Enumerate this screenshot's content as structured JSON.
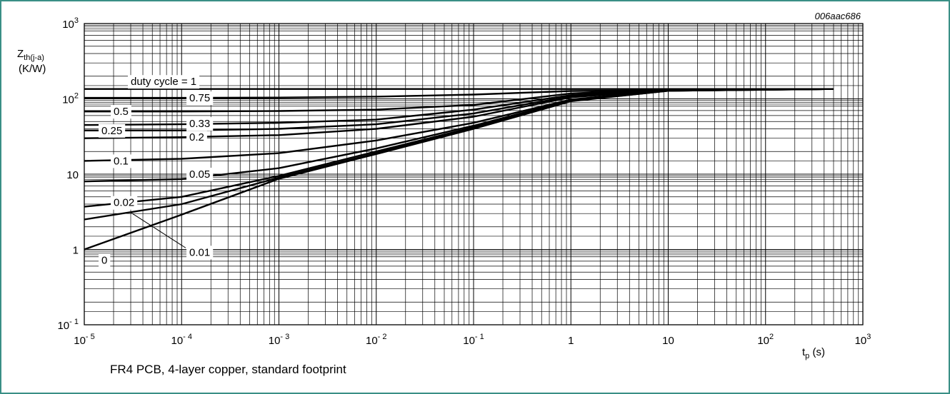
{
  "caption": "FR4 PCB, 4-layer copper, standard footprint",
  "chart_data": {
    "type": "line",
    "figure_code": "006aac686",
    "ylabel_main": "Z",
    "ylabel_sub": "th(j-a)",
    "ylabel_unit": "(K/W)",
    "xlabel_main": "t",
    "xlabel_sub": "p",
    "xlabel_unit": " (s)",
    "x_scale": "log",
    "y_scale": "log",
    "xlim": [
      1e-05,
      1000
    ],
    "ylim": [
      0.1,
      1000
    ],
    "grid": true,
    "x_ticks": [
      {
        "base": "10",
        "exp": "- 5",
        "value": 1e-05
      },
      {
        "base": "10",
        "exp": "- 4",
        "value": 0.0001
      },
      {
        "base": "10",
        "exp": "- 3",
        "value": 0.001
      },
      {
        "base": "10",
        "exp": "- 2",
        "value": 0.01
      },
      {
        "base": "10",
        "exp": "- 1",
        "value": 0.1
      },
      {
        "base": "1",
        "exp": "",
        "value": 1
      },
      {
        "base": "10",
        "exp": "",
        "value": 10
      },
      {
        "base": "10",
        "exp": "2",
        "value": 100
      },
      {
        "base": "10",
        "exp": "3",
        "value": 1000
      }
    ],
    "y_ticks": [
      {
        "base": "10",
        "exp": "- 1",
        "value": 0.1
      },
      {
        "base": "1",
        "exp": "",
        "value": 1
      },
      {
        "base": "10",
        "exp": "",
        "value": 10
      },
      {
        "base": "10",
        "exp": "2",
        "value": 100
      },
      {
        "base": "10",
        "exp": "3",
        "value": 1000
      }
    ],
    "series": [
      {
        "name": "duty cycle = 1",
        "label_x": 3e-05,
        "label_y": 170,
        "x": [
          1e-05,
          500
        ],
        "y": [
          135,
          135
        ]
      },
      {
        "name": "0.75",
        "label_x": 0.00012,
        "label_y": 103,
        "x": [
          1e-05,
          0.0001,
          0.001,
          0.01,
          0.1,
          1,
          500
        ],
        "y": [
          103,
          103,
          104,
          107,
          114,
          127,
          135
        ]
      },
      {
        "name": "0.5",
        "label_x": 2e-05,
        "label_y": 68,
        "x": [
          1e-05,
          0.0001,
          0.001,
          0.01,
          0.1,
          1,
          10,
          500
        ],
        "y": [
          68,
          68,
          69,
          72,
          83,
          118,
          134,
          135
        ]
      },
      {
        "name": "0.33",
        "label_x": 0.00012,
        "label_y": 47,
        "x": [
          1e-05,
          0.0001,
          0.001,
          0.01,
          0.1,
          1,
          10,
          500
        ],
        "y": [
          45,
          46,
          48,
          53,
          72,
          112,
          133,
          135
        ]
      },
      {
        "name": "0.25",
        "label_x": 1.5e-05,
        "label_y": 38,
        "x": [
          1e-05,
          0.0001,
          0.001,
          0.01,
          0.1,
          1,
          10,
          500
        ],
        "y": [
          38,
          38,
          40,
          46,
          64,
          108,
          132,
          135
        ]
      },
      {
        "name": "0.2",
        "label_x": 0.00012,
        "label_y": 31,
        "x": [
          1e-05,
          0.0001,
          0.001,
          0.01,
          0.1,
          1,
          10,
          500
        ],
        "y": [
          30,
          31,
          33,
          40,
          58,
          105,
          131,
          135
        ]
      },
      {
        "name": "0.1",
        "label_x": 2e-05,
        "label_y": 15,
        "x": [
          1e-05,
          0.0001,
          0.001,
          0.01,
          0.1,
          1,
          10,
          500
        ],
        "y": [
          15,
          16,
          19,
          28,
          48,
          98,
          130,
          135
        ]
      },
      {
        "name": "0.05",
        "label_x": 0.00012,
        "label_y": 10,
        "x": [
          1e-05,
          0.0001,
          0.001,
          0.01,
          0.1,
          1,
          10,
          500
        ],
        "y": [
          8,
          8.6,
          12,
          22,
          44,
          96,
          129,
          135
        ]
      },
      {
        "name": "0.02",
        "label_x": 2e-05,
        "label_y": 4.2,
        "x": [
          1e-05,
          0.0001,
          0.001,
          0.01,
          0.1,
          1,
          10,
          500
        ],
        "y": [
          3.7,
          5,
          9.5,
          20,
          42,
          95,
          128,
          135
        ]
      },
      {
        "name": "0.01",
        "label_x": 0.00012,
        "label_y": 0.92,
        "x": [
          1e-05,
          0.0001,
          0.001,
          0.01,
          0.1,
          1,
          10,
          500
        ],
        "y": [
          2.5,
          4,
          9,
          19,
          41,
          94,
          128,
          135
        ]
      },
      {
        "name": "0",
        "label_x": 1.5e-05,
        "label_y": 0.72,
        "x": [
          1e-05,
          0.0001,
          0.001,
          0.01,
          0.1,
          1,
          10,
          500
        ],
        "y": [
          1,
          2.9,
          8.7,
          18.5,
          40,
          93,
          128,
          135
        ]
      }
    ]
  }
}
